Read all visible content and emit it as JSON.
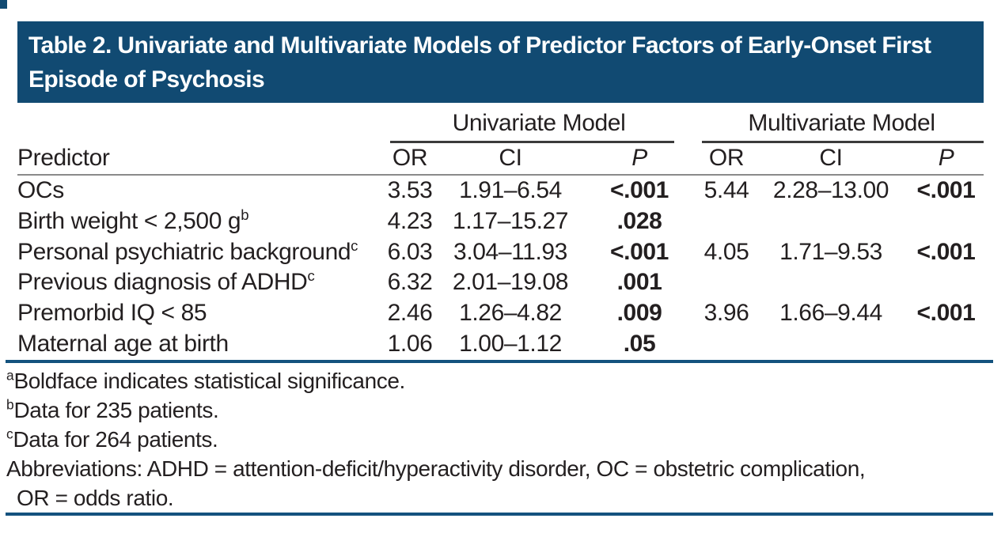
{
  "page": {
    "title": "Table 2. Univariate and Multivariate Models of Predictor Factors of Early-Onset First Episode of Psychosis"
  },
  "colors": {
    "banner_blue": "#114a72",
    "rule_blue": "#14527e",
    "rule_gray": "#8a8a8a",
    "rule_dark": "#3b3b3b",
    "text": "#231f20"
  },
  "table": {
    "spanners": [
      {
        "label": "Univariate Model"
      },
      {
        "label": "Multivariate Model"
      }
    ],
    "columns": {
      "predictor": "Predictor",
      "or": "OR",
      "ci": "CI",
      "p": "P"
    },
    "rows": [
      {
        "label": "OCs",
        "sup": "",
        "uni": {
          "or": "3.53",
          "ci": "1.91–6.54",
          "p": "<.001"
        },
        "multi": {
          "or": "5.44",
          "ci": "2.28–13.00",
          "p": "<.001"
        }
      },
      {
        "label": "Birth weight < 2,500 g",
        "sup": "b",
        "uni": {
          "or": "4.23",
          "ci": "1.17–15.27",
          "p": ".028"
        },
        "multi": {
          "or": "",
          "ci": "",
          "p": ""
        }
      },
      {
        "label": "Personal psychiatric background",
        "sup": "c",
        "uni": {
          "or": "6.03",
          "ci": "3.04–11.93",
          "p": "<.001"
        },
        "multi": {
          "or": "4.05",
          "ci": "1.71–9.53",
          "p": "<.001"
        }
      },
      {
        "label": "Previous diagnosis of ADHD",
        "sup": "c",
        "uni": {
          "or": "6.32",
          "ci": "2.01–19.08",
          "p": ".001"
        },
        "multi": {
          "or": "",
          "ci": "",
          "p": ""
        }
      },
      {
        "label": "Premorbid IQ < 85",
        "sup": "",
        "uni": {
          "or": "2.46",
          "ci": "1.26–4.82",
          "p": ".009"
        },
        "multi": {
          "or": "3.96",
          "ci": "1.66–9.44",
          "p": "<.001"
        }
      },
      {
        "label": "Maternal age at birth",
        "sup": "",
        "uni": {
          "or": "1.06",
          "ci": "1.00–1.12",
          "p": ".05"
        },
        "multi": {
          "or": "",
          "ci": "",
          "p": ""
        }
      }
    ]
  },
  "footnotes": {
    "items": [
      {
        "sup": "a",
        "text": "Boldface indicates statistical significance."
      },
      {
        "sup": "b",
        "text": "Data for 235 patients."
      },
      {
        "sup": "c",
        "text": "Data for 264 patients."
      }
    ],
    "abbreviations_line1": "Abbreviations: ADHD = attention-deficit/hyperactivity disorder, OC = obstetric complication,",
    "abbreviations_line2": "OR = odds ratio."
  }
}
